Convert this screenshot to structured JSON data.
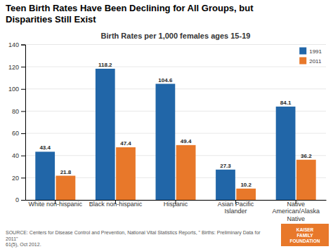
{
  "chart_data": {
    "type": "bar",
    "title": "Teen Birth Rates Have Been Declining for All Groups, but\nDisparities Still Exist",
    "subtitle": "Birth Rates per 1,000 females ages 15-19",
    "categories": [
      "White non-hispanic",
      "Black non-hispanic",
      "Hispanic",
      "Asian Pacific\nIslander",
      "Native\nAmerican/Alaska\nNative"
    ],
    "series": [
      {
        "name": "1991",
        "color": "#2166A8",
        "values": [
          43.4,
          118.2,
          104.6,
          27.3,
          84.1
        ]
      },
      {
        "name": "2011",
        "color": "#E8782A",
        "values": [
          21.8,
          47.4,
          49.4,
          10.2,
          36.2
        ]
      }
    ],
    "ylim": [
      0,
      140
    ],
    "yticks": [
      0,
      20,
      40,
      60,
      80,
      100,
      120,
      140
    ],
    "grid": true,
    "legend": "upper right",
    "data_labels": true,
    "annotations": [
      "SOURCE: Centers for Disease Control and Prevention, National Vital Statistics Reports, \" Births: Preliminary Data for 2011\"\n61(5), Oct 2012.",
      "KAISER\nFAMILY\nFOUNDATION"
    ]
  }
}
